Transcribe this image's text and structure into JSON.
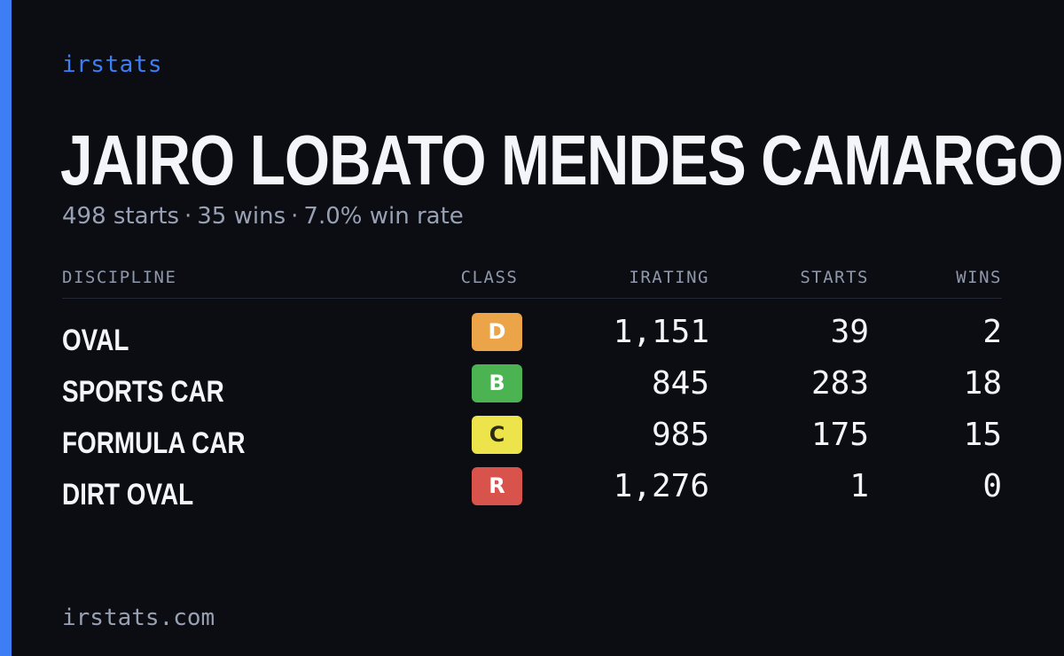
{
  "brand": "irstats",
  "accent_color": "#3d7ef5",
  "driver": {
    "name": "JAIRO LOBATO MENDES CAMARGO",
    "starts": "498 starts",
    "wins": "35 wins",
    "win_rate": "7.0% win rate",
    "separator": "·"
  },
  "table": {
    "headers": {
      "discipline": "DISCIPLINE",
      "class": "CLASS",
      "irating": "IRATING",
      "starts": "STARTS",
      "wins": "WINS"
    },
    "rows": [
      {
        "discipline": "OVAL",
        "class": "D",
        "class_color": "#eba448",
        "class_text_color": "#ffffff",
        "irating": "1,151",
        "starts": "39",
        "wins": "2"
      },
      {
        "discipline": "SPORTS CAR",
        "class": "B",
        "class_color": "#4cb352",
        "class_text_color": "#ffffff",
        "irating": "845",
        "starts": "283",
        "wins": "18"
      },
      {
        "discipline": "FORMULA CAR",
        "class": "C",
        "class_color": "#ede44c",
        "class_text_color": "#2a2a1a",
        "irating": "985",
        "starts": "175",
        "wins": "15"
      },
      {
        "discipline": "DIRT OVAL",
        "class": "R",
        "class_color": "#d9534d",
        "class_text_color": "#ffffff",
        "irating": "1,276",
        "starts": "1",
        "wins": "0"
      }
    ]
  },
  "footer": "irstats.com"
}
